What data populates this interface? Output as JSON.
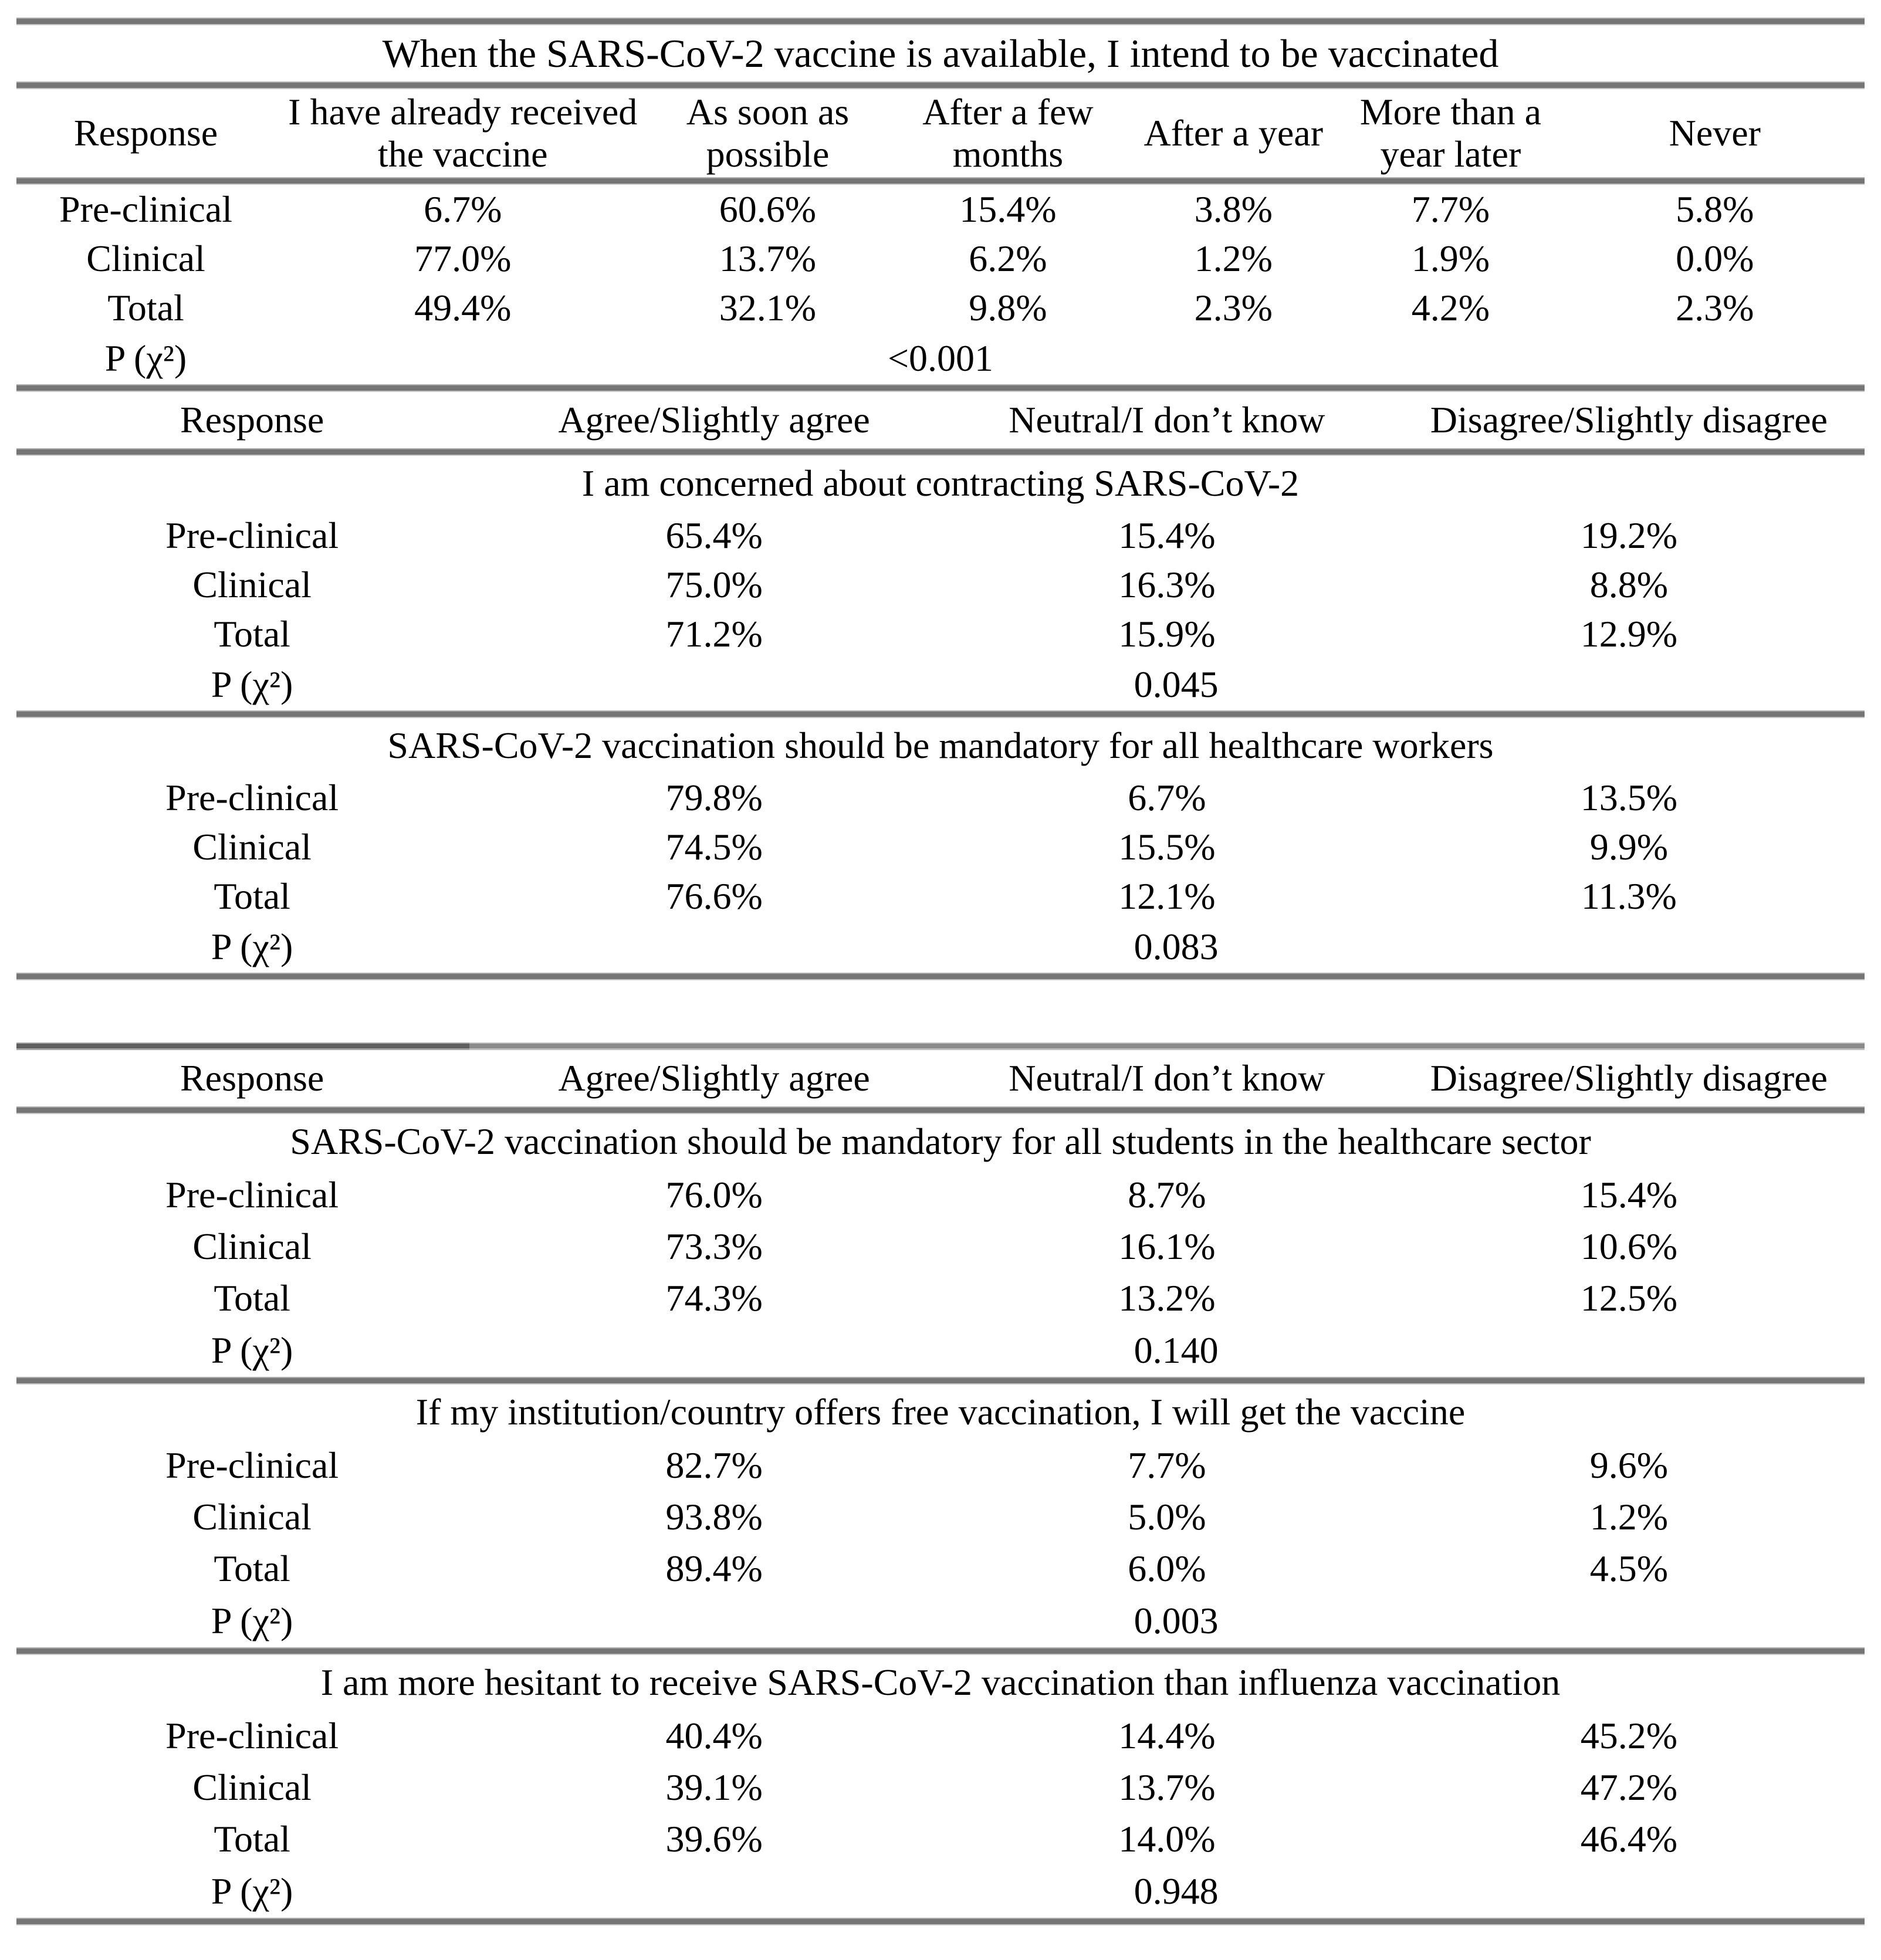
{
  "colors": {
    "background": "#ffffff",
    "text": "#000000",
    "rule_gray": "#757575"
  },
  "intent_table": {
    "title": "When the SARS-CoV-2 vaccine is available, I intend to be vaccinated",
    "columns": [
      "Response",
      "I have already received the vaccine",
      "As soon as possible",
      "After a few months",
      "After a year",
      "More than a year later",
      "Never"
    ],
    "rows": [
      {
        "label": "Pre-clinical",
        "values": [
          "6.7%",
          "60.6%",
          "15.4%",
          "3.8%",
          "7.7%",
          "5.8%"
        ]
      },
      {
        "label": "Clinical",
        "values": [
          "77.0%",
          "13.7%",
          "6.2%",
          "1.2%",
          "1.9%",
          "0.0%"
        ]
      },
      {
        "label": "Total",
        "values": [
          "49.4%",
          "32.1%",
          "9.8%",
          "2.3%",
          "4.2%",
          "2.3%"
        ]
      }
    ],
    "p_label": "P (χ²)",
    "p_value": "<0.001"
  },
  "likert_header": {
    "columns": [
      "Response",
      "Agree/Slightly agree",
      "Neutral/I don’t know",
      "Disagree/Slightly disagree"
    ]
  },
  "statements": [
    {
      "title": "I am concerned about contracting SARS-CoV-2",
      "rows": [
        {
          "label": "Pre-clinical",
          "values": [
            "65.4%",
            "15.4%",
            "19.2%"
          ]
        },
        {
          "label": "Clinical",
          "values": [
            "75.0%",
            "16.3%",
            "8.8%"
          ]
        },
        {
          "label": "Total",
          "values": [
            "71.2%",
            "15.9%",
            "12.9%"
          ]
        }
      ],
      "p_label": "P (χ²)",
      "p_value": "0.045"
    },
    {
      "title": "SARS-CoV-2 vaccination should be mandatory for all healthcare workers",
      "rows": [
        {
          "label": "Pre-clinical",
          "values": [
            "79.8%",
            "6.7%",
            "13.5%"
          ]
        },
        {
          "label": "Clinical",
          "values": [
            "74.5%",
            "15.5%",
            "9.9%"
          ]
        },
        {
          "label": "Total",
          "values": [
            "76.6%",
            "12.1%",
            "11.3%"
          ]
        }
      ],
      "p_label": "P (χ²)",
      "p_value": "0.083"
    },
    {
      "title": "SARS-CoV-2 vaccination should be mandatory for all students in the healthcare sector",
      "rows": [
        {
          "label": "Pre-clinical",
          "values": [
            "76.0%",
            "8.7%",
            "15.4%"
          ]
        },
        {
          "label": "Clinical",
          "values": [
            "73.3%",
            "16.1%",
            "10.6%"
          ]
        },
        {
          "label": "Total",
          "values": [
            "74.3%",
            "13.2%",
            "12.5%"
          ]
        }
      ],
      "p_label": "P (χ²)",
      "p_value": "0.140"
    },
    {
      "title": "If my institution/country offers free vaccination, I will get the vaccine",
      "rows": [
        {
          "label": "Pre-clinical",
          "values": [
            "82.7%",
            "7.7%",
            "9.6%"
          ]
        },
        {
          "label": "Clinical",
          "values": [
            "93.8%",
            "5.0%",
            "1.2%"
          ]
        },
        {
          "label": "Total",
          "values": [
            "89.4%",
            "6.0%",
            "4.5%"
          ]
        }
      ],
      "p_label": "P (χ²)",
      "p_value": "0.003"
    },
    {
      "title": "I am more hesitant to receive SARS-CoV-2 vaccination than influenza vaccination",
      "rows": [
        {
          "label": "Pre-clinical",
          "values": [
            "40.4%",
            "14.4%",
            "45.2%"
          ]
        },
        {
          "label": "Clinical",
          "values": [
            "39.1%",
            "13.7%",
            "47.2%"
          ]
        },
        {
          "label": "Total",
          "values": [
            "39.6%",
            "14.0%",
            "46.4%"
          ]
        }
      ],
      "p_label": "P (χ²)",
      "p_value": "0.948"
    }
  ]
}
